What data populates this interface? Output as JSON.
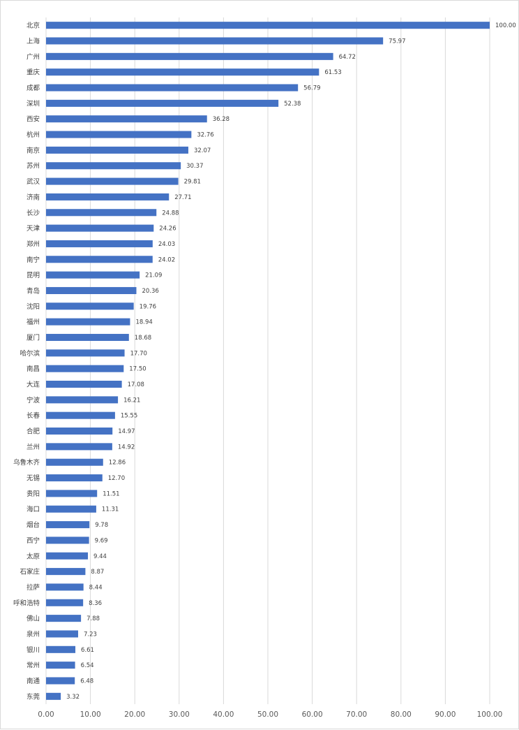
{
  "chart_data": {
    "type": "bar",
    "orientation": "horizontal",
    "title": "",
    "xlabel": "",
    "ylabel": "",
    "xlim": [
      0,
      100
    ],
    "x_ticks": [
      "0.00",
      "10.00",
      "20.00",
      "30.00",
      "40.00",
      "50.00",
      "60.00",
      "70.00",
      "80.00",
      "90.00",
      "100.00"
    ],
    "grid": "vertical",
    "bar_color": "#4472C4",
    "categories": [
      "北京",
      "上海",
      "广州",
      "重庆",
      "成都",
      "深圳",
      "西安",
      "杭州",
      "南京",
      "苏州",
      "武汉",
      "济南",
      "长沙",
      "天津",
      "郑州",
      "南宁",
      "昆明",
      "青岛",
      "沈阳",
      "福州",
      "厦门",
      "哈尔滨",
      "南昌",
      "大连",
      "宁波",
      "长春",
      "合肥",
      "兰州",
      "乌鲁木齐",
      "无锡",
      "贵阳",
      "海口",
      "烟台",
      "西宁",
      "太原",
      "石家庄",
      "拉萨",
      "呼和浩特",
      "佛山",
      "泉州",
      "银川",
      "常州",
      "南通",
      "东莞"
    ],
    "values": [
      100.0,
      75.97,
      64.72,
      61.53,
      56.79,
      52.38,
      36.28,
      32.76,
      32.07,
      30.37,
      29.81,
      27.71,
      24.88,
      24.26,
      24.03,
      24.02,
      21.09,
      20.36,
      19.76,
      18.94,
      18.68,
      17.7,
      17.5,
      17.08,
      16.21,
      15.55,
      14.97,
      14.92,
      12.86,
      12.7,
      11.51,
      11.31,
      9.78,
      9.69,
      9.44,
      8.87,
      8.44,
      8.36,
      7.88,
      7.23,
      6.61,
      6.54,
      6.48,
      3.32
    ],
    "value_labels": [
      "100.00",
      "75.97",
      "64.72",
      "61.53",
      "56.79",
      "52.38",
      "36.28",
      "32.76",
      "32.07",
      "30.37",
      "29.81",
      "27.71",
      "24.88",
      "24.26",
      "24.03",
      "24.02",
      "21.09",
      "20.36",
      "19.76",
      "18.94",
      "18.68",
      "17.70",
      "17.50",
      "17.08",
      "16.21",
      "15.55",
      "14.97",
      "14.92",
      "12.86",
      "12.70",
      "11.51",
      "11.31",
      "9.78",
      "9.69",
      "9.44",
      "8.87",
      "8.44",
      "8.36",
      "7.88",
      "7.23",
      "6.61",
      "6.54",
      "6.48",
      "3.32"
    ]
  }
}
